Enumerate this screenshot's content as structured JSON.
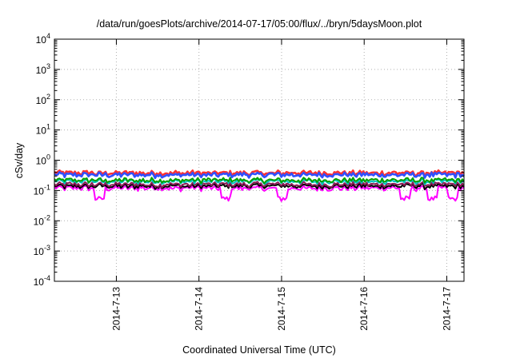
{
  "chart_data": {
    "type": "line",
    "title": "/data/run/goesPlots/archive/2014-07-17/05:00/flux/../bryn/5daysMoon.plot",
    "xlabel": "Coordinated Universal Time (UTC)",
    "ylabel": "cSv/day",
    "y_scale": "log",
    "ylim": [
      0.0001,
      10000
    ],
    "xlim": [
      "2014-07-12 06:00",
      "2014-07-17 05:00"
    ],
    "x_ticks": [
      "2014-7-13",
      "2014-7-14",
      "2014-7-15",
      "2014-7-16",
      "2014-7-17"
    ],
    "y_ticks": [
      {
        "base": "10",
        "exp": "-4"
      },
      {
        "base": "10",
        "exp": "-3"
      },
      {
        "base": "10",
        "exp": "-2"
      },
      {
        "base": "10",
        "exp": "-1"
      },
      {
        "base": "10",
        "exp": "0"
      },
      {
        "base": "10",
        "exp": "1"
      },
      {
        "base": "10",
        "exp": "2"
      },
      {
        "base": "10",
        "exp": "3"
      },
      {
        "base": "10",
        "exp": "4"
      }
    ],
    "grid": true,
    "series_colors": [
      "#ff00ff",
      "#000000",
      "#8b1a55",
      "#00c0c0",
      "#00a000",
      "#ff3030",
      "#3050ff"
    ],
    "series_levels": [
      0.12,
      0.14,
      0.16,
      0.2,
      0.22,
      0.38,
      0.33
    ],
    "dip_dates": [
      "2014-07-12 19:00",
      "2014-07-14 08:00",
      "2014-07-15 00:00",
      "2014-07-16 12:00",
      "2014-07-16 20:00",
      "2014-07-17 02:00"
    ]
  }
}
